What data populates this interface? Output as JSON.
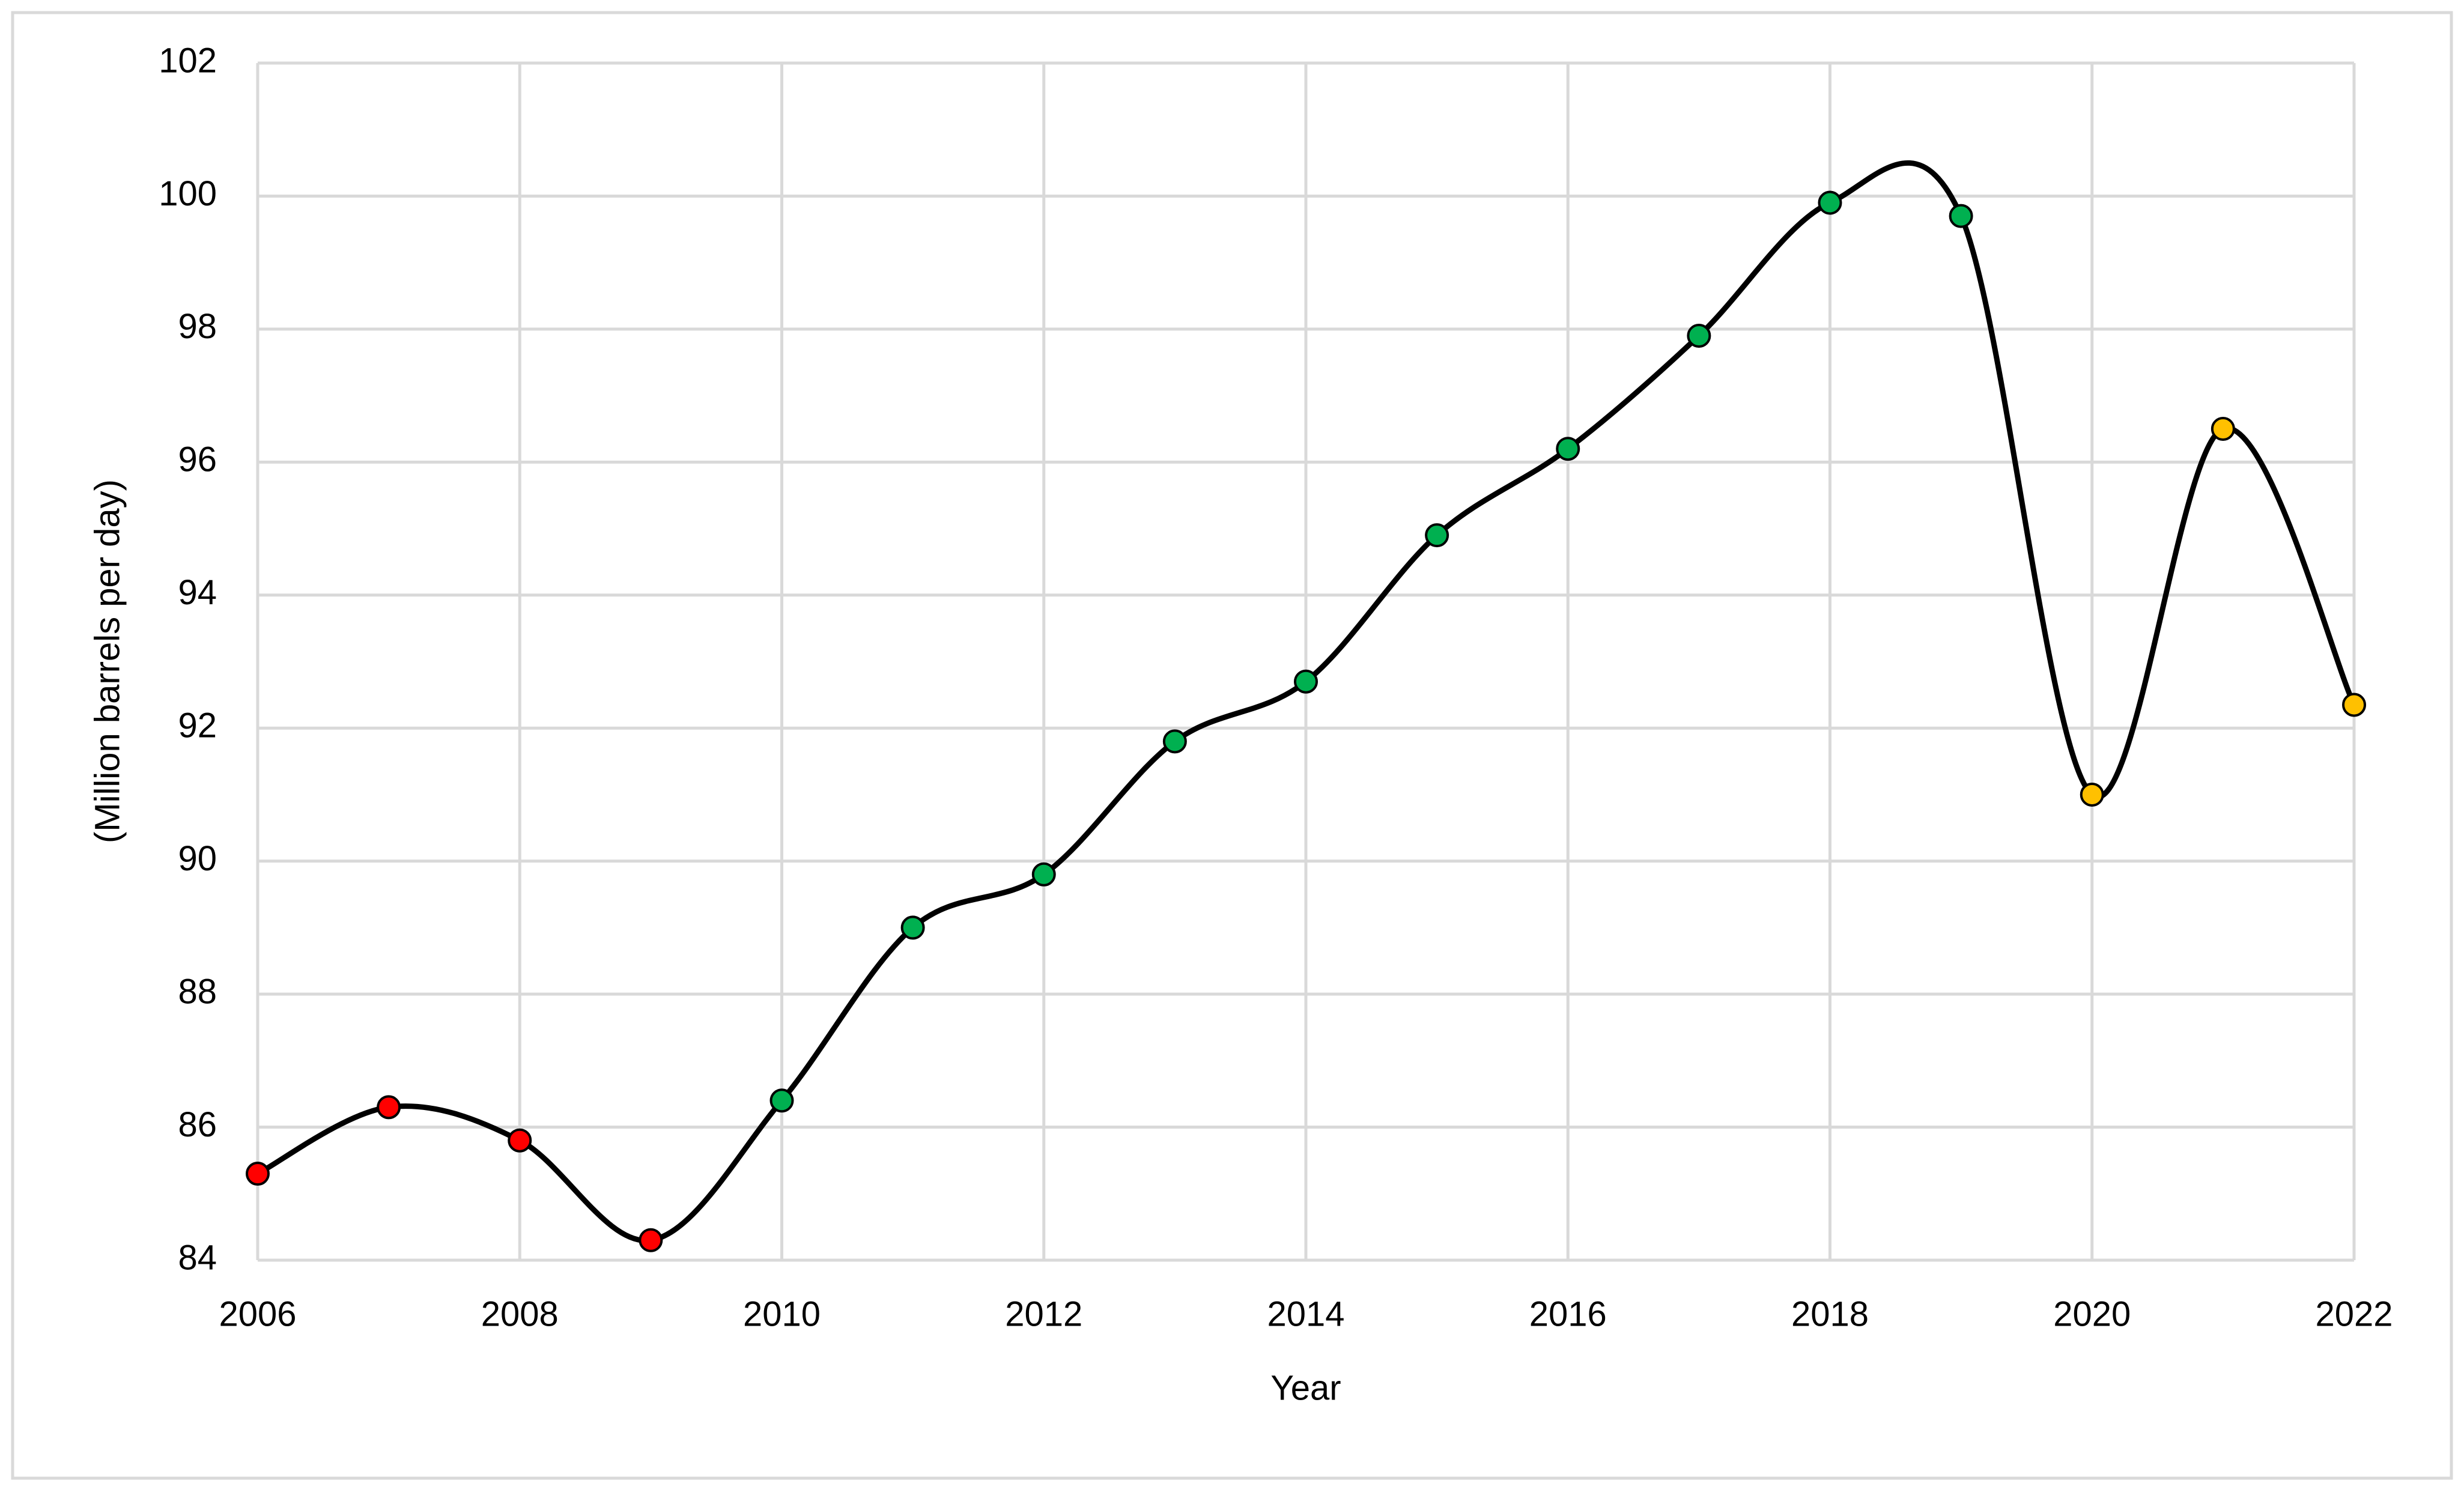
{
  "chart_data": {
    "type": "line",
    "x_label": "Year",
    "y_label": "(Million barrels per day)",
    "x": [
      2006,
      2007,
      2008,
      2009,
      2010,
      2011,
      2012,
      2013,
      2014,
      2015,
      2016,
      2017,
      2018,
      2019,
      2020,
      2021,
      2022
    ],
    "values": [
      85.3,
      86.3,
      85.8,
      84.3,
      86.4,
      89.0,
      89.8,
      91.8,
      92.7,
      94.9,
      96.2,
      97.9,
      99.9,
      99.7,
      91.0,
      96.5,
      92.35
    ],
    "point_colors": [
      "#ff0000",
      "#ff0000",
      "#ff0000",
      "#ff0000",
      "#00b050",
      "#00b050",
      "#00b050",
      "#00b050",
      "#00b050",
      "#00b050",
      "#00b050",
      "#00b050",
      "#00b050",
      "#00b050",
      "#ffc000",
      "#ffc000",
      "#ffc000"
    ],
    "line_color": "#000000",
    "smooth": true,
    "grid": true,
    "xlim": [
      2006,
      2022
    ],
    "xticks": [
      2006,
      2008,
      2010,
      2012,
      2014,
      2016,
      2018,
      2020,
      2022
    ],
    "ylim": [
      84,
      102
    ],
    "yticks": [
      84,
      86,
      88,
      90,
      92,
      94,
      96,
      98,
      100,
      102
    ]
  }
}
